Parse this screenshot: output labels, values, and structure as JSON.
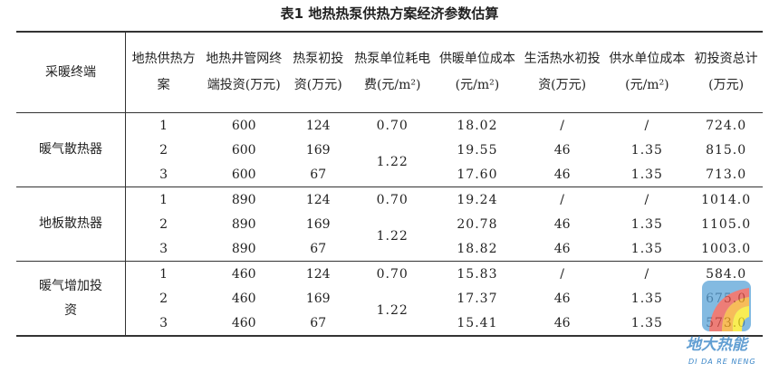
{
  "title": "表1  地热热泵供热方案经济参数估算",
  "headers": [
    "采暖终端",
    "地热供热方案",
    "地热井管网终端投资(万元)",
    "热泵初投资(万元)",
    "热泵单位耗电费(元/m²)",
    "供暖单位成本(元/m²)",
    "生活热水初投资(万元)",
    "供水单位成本(元/m²)",
    "初投资总计(万元)"
  ],
  "groups": [
    {
      "terminal": "暖气散热器",
      "rows": [
        {
          "plan": "1",
          "well": "600",
          "pump": "124",
          "cost": "18.02",
          "water": "/",
          "unit": "/",
          "total": "724.0"
        },
        {
          "plan": "2",
          "well": "600",
          "pump": "169",
          "cost": "19.55",
          "water": "46",
          "unit": "1.35",
          "total": "815.0"
        },
        {
          "plan": "3",
          "well": "600",
          "pump": "67",
          "cost": "17.60",
          "water": "46",
          "unit": "1.35",
          "total": "713.0"
        }
      ],
      "elec": [
        "0.70",
        "1.22"
      ]
    },
    {
      "terminal": "地板散热器",
      "rows": [
        {
          "plan": "1",
          "well": "890",
          "pump": "124",
          "cost": "19.24",
          "water": "/",
          "unit": "/",
          "total": "1014.0"
        },
        {
          "plan": "2",
          "well": "890",
          "pump": "169",
          "cost": "20.78",
          "water": "46",
          "unit": "1.35",
          "total": "1105.0"
        },
        {
          "plan": "3",
          "well": "890",
          "pump": "67",
          "cost": "18.82",
          "water": "46",
          "unit": "1.35",
          "total": "1003.0"
        }
      ],
      "elec": [
        "0.70",
        "1.22"
      ]
    },
    {
      "terminal": "暖气增加投资",
      "rows": [
        {
          "plan": "1",
          "well": "460",
          "pump": "124",
          "cost": "15.83",
          "water": "/",
          "unit": "/",
          "total": "584.0"
        },
        {
          "plan": "2",
          "well": "460",
          "pump": "169",
          "cost": "17.37",
          "water": "46",
          "unit": "1.35",
          "total": "675.0"
        },
        {
          "plan": "3",
          "well": "460",
          "pump": "67",
          "cost": "15.41",
          "water": "46",
          "unit": "1.35",
          "total": "573.0"
        }
      ],
      "elec": [
        "0.70",
        "1.22"
      ]
    }
  ],
  "watermark": {
    "text": "地大热能",
    "sub": "DI DA RE NENG"
  }
}
